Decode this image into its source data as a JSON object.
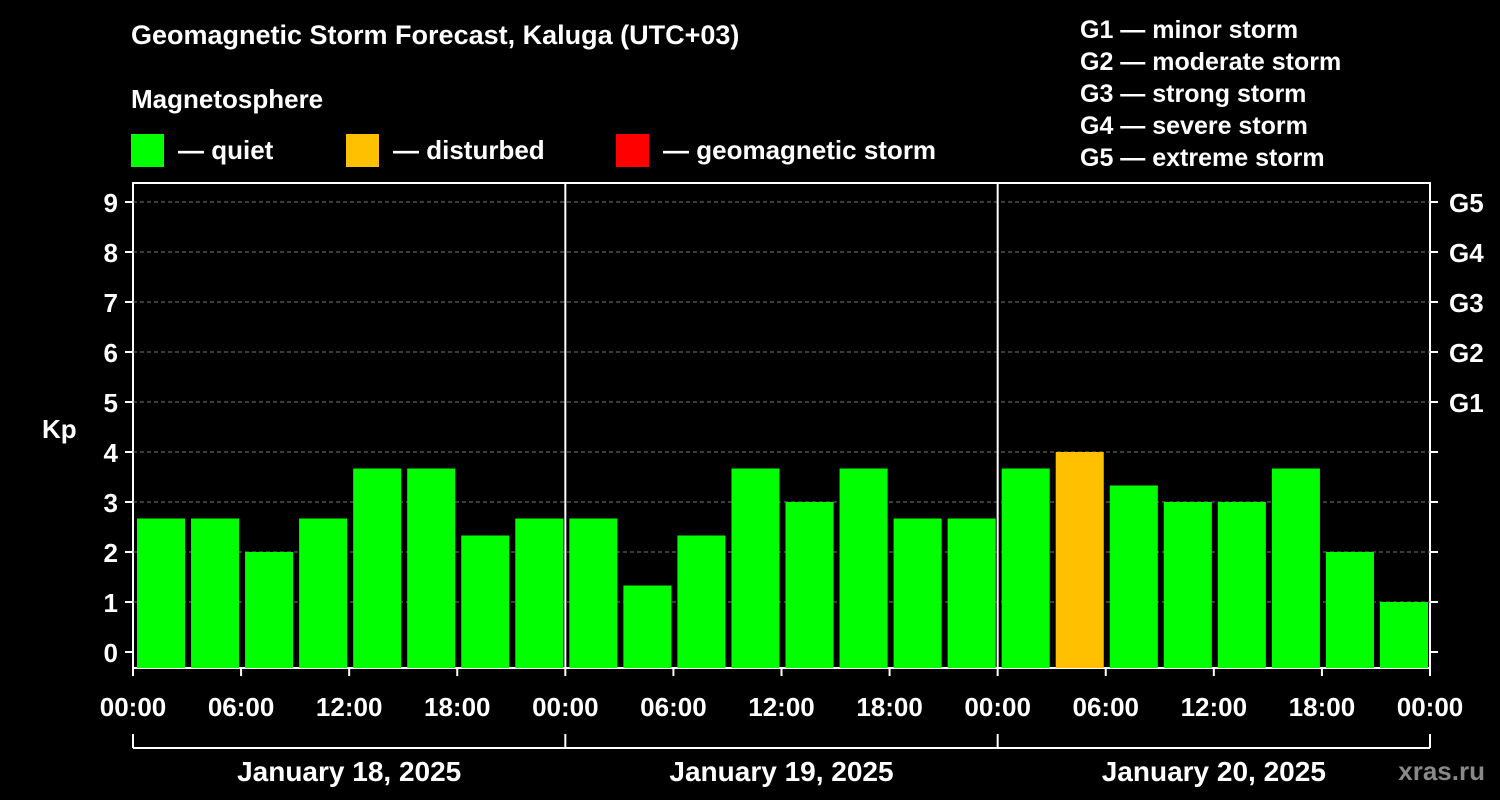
{
  "header": {
    "title": "Geomagnetic Storm Forecast, Kaluga (UTC+03)",
    "subtitle": "Magnetosphere"
  },
  "legend": [
    {
      "label": "— quiet",
      "color": "#00ff00"
    },
    {
      "label": "— disturbed",
      "color": "#ffc000"
    },
    {
      "label": "— geomagnetic storm",
      "color": "#ff0000"
    }
  ],
  "storm_scale": [
    "G1 — minor storm",
    "G2 — moderate storm",
    "G3 — strong storm",
    "G4 — severe storm",
    "G5 — extreme storm"
  ],
  "watermark": "xras.ru",
  "chart_data": {
    "type": "bar",
    "title": "Geomagnetic Storm Forecast, Kaluga (UTC+03)",
    "ylabel": "Kp",
    "ylim": [
      0,
      9
    ],
    "y_ticks": [
      "0",
      "1",
      "2",
      "3",
      "4",
      "5",
      "6",
      "7",
      "8",
      "9"
    ],
    "right_ticks": [
      {
        "kp": 5,
        "label": "G1"
      },
      {
        "kp": 6,
        "label": "G2"
      },
      {
        "kp": 7,
        "label": "G3"
      },
      {
        "kp": 8,
        "label": "G4"
      },
      {
        "kp": 9,
        "label": "G5"
      }
    ],
    "x_tick_labels": [
      "00:00",
      "06:00",
      "12:00",
      "18:00",
      "00:00",
      "06:00",
      "12:00",
      "18:00",
      "00:00",
      "06:00",
      "12:00",
      "18:00",
      "00:00"
    ],
    "days": [
      "January 18, 2025",
      "January 19, 2025",
      "January 20, 2025"
    ],
    "interval_hours": 3,
    "values": [
      2.67,
      2.67,
      2.0,
      2.67,
      3.67,
      3.67,
      2.33,
      2.67,
      2.67,
      1.33,
      2.33,
      3.67,
      3.0,
      3.67,
      2.67,
      2.67,
      3.67,
      4.0,
      3.33,
      3.0,
      3.0,
      3.67,
      2.0,
      1.0
    ],
    "thresholds": {
      "disturbed": 4,
      "storm": 5
    },
    "grid": true
  }
}
